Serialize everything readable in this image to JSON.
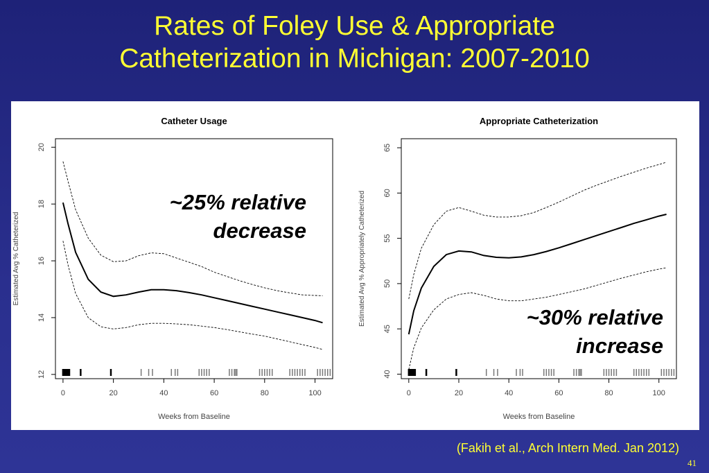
{
  "slide": {
    "title_line1": "Rates of Foley Use & Appropriate",
    "title_line2": "Catheterization in Michigan: 2007-2010",
    "citation": "(Fakih et al., Arch Intern Med.  Jan 2012)",
    "page_number": "41"
  },
  "colors": {
    "background": "#2a2f8e",
    "title_text": "#ffff33",
    "panel": "#ffffff",
    "line": "#000000"
  },
  "chart_data": [
    {
      "type": "line",
      "title": "Catheter Usage",
      "xlabel": "Weeks from Baseline",
      "ylabel": "Estimated Avg % Catheterized",
      "xlim": [
        -3,
        107
      ],
      "ylim": [
        11.85,
        20.3
      ],
      "xticks": [
        0,
        20,
        40,
        60,
        80,
        100
      ],
      "yticks": [
        12,
        14,
        16,
        18,
        20
      ],
      "annotation": [
        "~25% relative",
        "decrease"
      ],
      "series": [
        {
          "style": "solid",
          "x": [
            0,
            2,
            5,
            10,
            15,
            20,
            25,
            30,
            35,
            40,
            45,
            50,
            55,
            60,
            65,
            70,
            75,
            80,
            85,
            90,
            95,
            100,
            103
          ],
          "y": [
            18.05,
            17.3,
            16.3,
            15.35,
            14.9,
            14.75,
            14.8,
            14.9,
            14.98,
            14.98,
            14.95,
            14.88,
            14.8,
            14.7,
            14.6,
            14.5,
            14.4,
            14.3,
            14.2,
            14.1,
            14.0,
            13.9,
            13.82
          ]
        },
        {
          "style": "dashed",
          "x": [
            0,
            2,
            5,
            10,
            15,
            20,
            25,
            30,
            35,
            40,
            45,
            50,
            55,
            60,
            65,
            70,
            75,
            80,
            85,
            90,
            95,
            100,
            103
          ],
          "y": [
            19.5,
            18.8,
            17.8,
            16.8,
            16.2,
            15.97,
            16.0,
            16.18,
            16.28,
            16.25,
            16.1,
            15.95,
            15.8,
            15.6,
            15.45,
            15.3,
            15.17,
            15.05,
            14.95,
            14.87,
            14.8,
            14.78,
            14.77
          ]
        },
        {
          "style": "dashed",
          "x": [
            0,
            2,
            5,
            10,
            15,
            20,
            25,
            30,
            35,
            40,
            45,
            50,
            55,
            60,
            65,
            70,
            75,
            80,
            85,
            90,
            95,
            100,
            103
          ],
          "y": [
            16.7,
            15.85,
            14.85,
            14.0,
            13.68,
            13.6,
            13.65,
            13.75,
            13.8,
            13.8,
            13.78,
            13.75,
            13.7,
            13.65,
            13.58,
            13.5,
            13.42,
            13.35,
            13.25,
            13.15,
            13.05,
            12.95,
            12.88
          ]
        }
      ],
      "rug_x": [
        0,
        0.5,
        1,
        1.5,
        2,
        2.5,
        7,
        19,
        31,
        34,
        35.5,
        43,
        44.5,
        45.5,
        54,
        55,
        56,
        57,
        58,
        66,
        67,
        68,
        68.5,
        69,
        78,
        79,
        80,
        81,
        82,
        83,
        90,
        91,
        92,
        93,
        94,
        95,
        96,
        101,
        102,
        103,
        104,
        105,
        106
      ]
    },
    {
      "type": "line",
      "title": "Appropriate Catheterization",
      "xlabel": "Weeks from Baseline",
      "ylabel": "Estimated Avg % Appropriately Catheterized",
      "xlim": [
        -3,
        107
      ],
      "ylim": [
        39.5,
        66.0
      ],
      "xticks": [
        0,
        20,
        40,
        60,
        80,
        100
      ],
      "yticks": [
        40,
        45,
        50,
        55,
        60,
        65
      ],
      "annotation": [
        "~30% relative",
        "increase"
      ],
      "series": [
        {
          "style": "solid",
          "x": [
            0,
            2,
            5,
            10,
            15,
            20,
            25,
            30,
            35,
            40,
            45,
            50,
            55,
            60,
            65,
            70,
            75,
            80,
            85,
            90,
            95,
            100,
            103
          ],
          "y": [
            44.4,
            47.0,
            49.5,
            51.9,
            53.2,
            53.6,
            53.5,
            53.1,
            52.9,
            52.85,
            52.95,
            53.2,
            53.55,
            53.95,
            54.4,
            54.85,
            55.3,
            55.75,
            56.2,
            56.65,
            57.05,
            57.45,
            57.65
          ]
        },
        {
          "style": "dashed",
          "x": [
            0,
            2,
            5,
            10,
            15,
            20,
            25,
            30,
            35,
            40,
            45,
            50,
            55,
            60,
            65,
            70,
            75,
            80,
            85,
            90,
            95,
            100,
            103
          ],
          "y": [
            48.3,
            51.0,
            53.9,
            56.5,
            58.0,
            58.4,
            58.0,
            57.55,
            57.35,
            57.35,
            57.5,
            57.85,
            58.4,
            59.0,
            59.65,
            60.3,
            60.85,
            61.35,
            61.85,
            62.3,
            62.75,
            63.15,
            63.4
          ]
        },
        {
          "style": "dashed",
          "x": [
            0,
            2,
            5,
            10,
            15,
            20,
            25,
            30,
            35,
            40,
            45,
            50,
            55,
            60,
            65,
            70,
            75,
            80,
            85,
            90,
            95,
            100,
            103
          ],
          "y": [
            40.5,
            42.9,
            45.1,
            47.1,
            48.3,
            48.8,
            49.0,
            48.7,
            48.3,
            48.1,
            48.1,
            48.3,
            48.5,
            48.8,
            49.1,
            49.4,
            49.8,
            50.2,
            50.6,
            50.95,
            51.3,
            51.6,
            51.75
          ]
        }
      ],
      "rug_x": [
        0,
        0.5,
        1,
        1.5,
        2,
        2.5,
        7,
        19,
        31,
        34,
        35.5,
        43,
        44.5,
        45.5,
        54,
        55,
        56,
        57,
        58,
        66,
        67,
        68,
        68.5,
        69,
        78,
        79,
        80,
        81,
        82,
        83,
        90,
        91,
        92,
        93,
        94,
        95,
        96,
        101,
        102,
        103,
        104,
        105,
        106
      ]
    }
  ]
}
